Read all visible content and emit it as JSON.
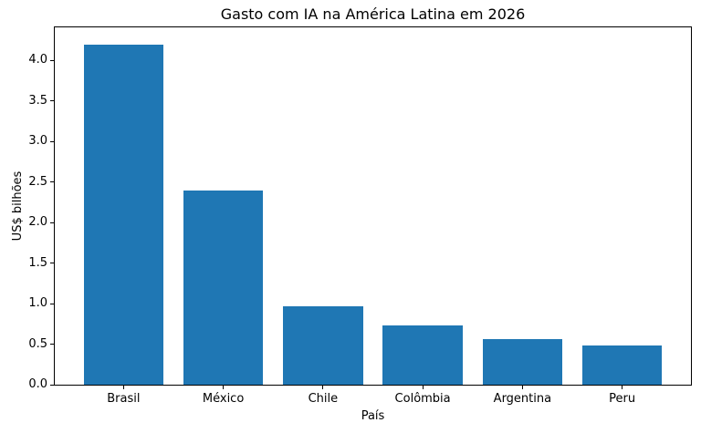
{
  "chart_data": {
    "type": "bar",
    "title": "Gasto com IA na América Latina em 2026",
    "xlabel": "País",
    "ylabel": "US$ bilhões",
    "categories": [
      "Brasil",
      "México",
      "Chile",
      "Colômbia",
      "Argentina",
      "Peru"
    ],
    "values": [
      4.2,
      2.4,
      0.97,
      0.73,
      0.56,
      0.48
    ],
    "bar_color": "#1f77b4",
    "text_color": "#000000",
    "background_color": "#ffffff",
    "ylim": [
      0,
      4.41
    ],
    "xlim": [
      -0.69,
      5.69
    ],
    "yticks": [
      0,
      0.5,
      1,
      1.5,
      2,
      2.5,
      3,
      3.5,
      4
    ],
    "ytick_labels": [
      "0.0",
      "0.5",
      "1.0",
      "1.5",
      "2.0",
      "2.5",
      "3.0",
      "3.5",
      "4.0"
    ],
    "bar_width_fraction": 0.8,
    "grid": false,
    "legend_position": "none"
  }
}
